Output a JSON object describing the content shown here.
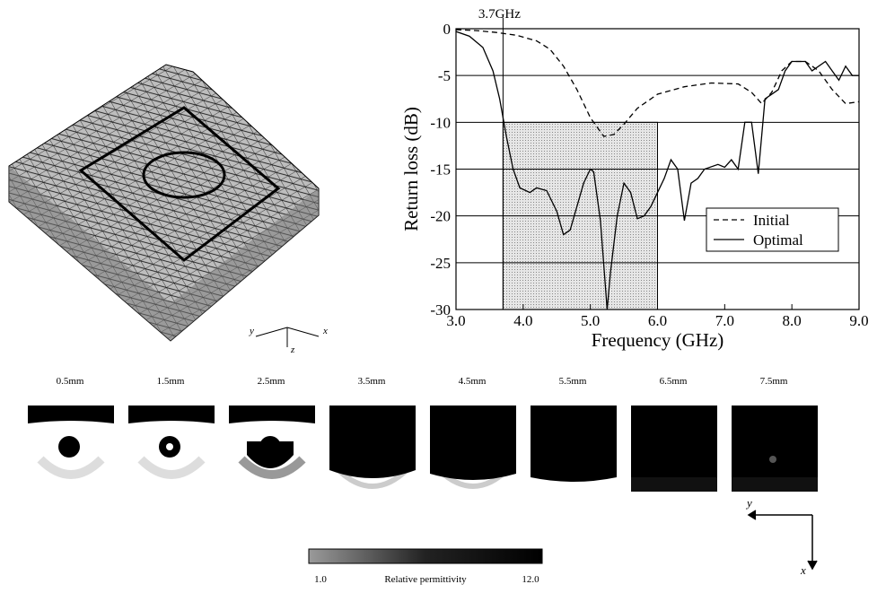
{
  "chart_data": {
    "type": "line",
    "xlabel": "Frequency (GHz)",
    "ylabel": "Return loss (dB)",
    "xlim": [
      3,
      9
    ],
    "ylim": [
      -30,
      0
    ],
    "xticks": [
      {
        "value": 3,
        "label": "3.0"
      },
      {
        "value": 4,
        "label": "4.0"
      },
      {
        "value": 5,
        "label": "5.0"
      },
      {
        "value": 6,
        "label": "6.0"
      },
      {
        "value": 7,
        "label": "7.0"
      },
      {
        "value": 8,
        "label": "8.0"
      },
      {
        "value": 9,
        "label": "9.0"
      }
    ],
    "yticks": [
      0,
      -5,
      -10,
      -15,
      -20,
      -25,
      -30
    ],
    "grid": true,
    "legend": "lower-right",
    "annotation": {
      "x": 3.7,
      "label": "3.7GHz"
    },
    "band": {
      "x": [
        3.7,
        6.0
      ],
      "y": [
        -30,
        -10
      ]
    },
    "series": [
      {
        "name": "Initial",
        "color": "#000000",
        "dash": true,
        "x": [
          3.0,
          3.3,
          3.6,
          3.9,
          4.2,
          4.4,
          4.6,
          4.8,
          5.0,
          5.2,
          5.35,
          5.5,
          5.7,
          6.0,
          6.4,
          6.8,
          7.2,
          7.4,
          7.55,
          7.7,
          7.85,
          8.0,
          8.2,
          8.4,
          8.6,
          8.8,
          9.0
        ],
        "values": [
          -0.1,
          -0.2,
          -0.4,
          -0.7,
          -1.3,
          -2.2,
          -4,
          -6.5,
          -9.5,
          -11.5,
          -11.3,
          -10.2,
          -8.5,
          -7,
          -6.2,
          -5.8,
          -5.9,
          -6.8,
          -8,
          -6.8,
          -4.5,
          -3.5,
          -3.5,
          -4.5,
          -6.5,
          -8,
          -7.8
        ]
      },
      {
        "name": "Optimal",
        "color": "#000000",
        "dash": false,
        "x": [
          3.0,
          3.2,
          3.4,
          3.55,
          3.65,
          3.75,
          3.85,
          3.95,
          4.1,
          4.2,
          4.35,
          4.5,
          4.6,
          4.7,
          4.8,
          4.9,
          5.0,
          5.05,
          5.15,
          5.25,
          5.3,
          5.4,
          5.5,
          5.6,
          5.7,
          5.8,
          5.9,
          6.0,
          6.1,
          6.2,
          6.3,
          6.4,
          6.5,
          6.6,
          6.7,
          6.9,
          7.0,
          7.1,
          7.2,
          7.3,
          7.4,
          7.5,
          7.6,
          7.7,
          7.8,
          7.9,
          8.0,
          8.2,
          8.3,
          8.5,
          8.6,
          8.7,
          8.8,
          8.9,
          9.0
        ],
        "values": [
          -0.3,
          -0.8,
          -2,
          -4.5,
          -7.5,
          -11.5,
          -15,
          -17,
          -17.5,
          -17,
          -17.3,
          -19.5,
          -22,
          -21.5,
          -19,
          -16.5,
          -15,
          -15.3,
          -20.5,
          -30,
          -26,
          -20,
          -16.5,
          -17.5,
          -20.3,
          -20,
          -19,
          -17.5,
          -16,
          -14,
          -15,
          -20.5,
          -16.5,
          -16,
          -15,
          -14.5,
          -14.8,
          -14,
          -15,
          -10,
          -10,
          -15.5,
          -7.5,
          -7,
          -6.5,
          -4.5,
          -3.5,
          -3.5,
          -4.5,
          -3.5,
          -4.5,
          -5.5,
          -4,
          -5,
          -5
        ]
      }
    ]
  },
  "axes3d": [
    "y",
    "x",
    "z"
  ],
  "slices": [
    "0.5mm",
    "1.5mm",
    "2.5mm",
    "3.5mm",
    "4.5mm",
    "5.5mm",
    "6.5mm",
    "7.5mm"
  ],
  "orientation": {
    "y": "y",
    "x": "x"
  },
  "colorbar": {
    "min": "1.0",
    "label": "Relative permittivity",
    "max": "12.0"
  }
}
